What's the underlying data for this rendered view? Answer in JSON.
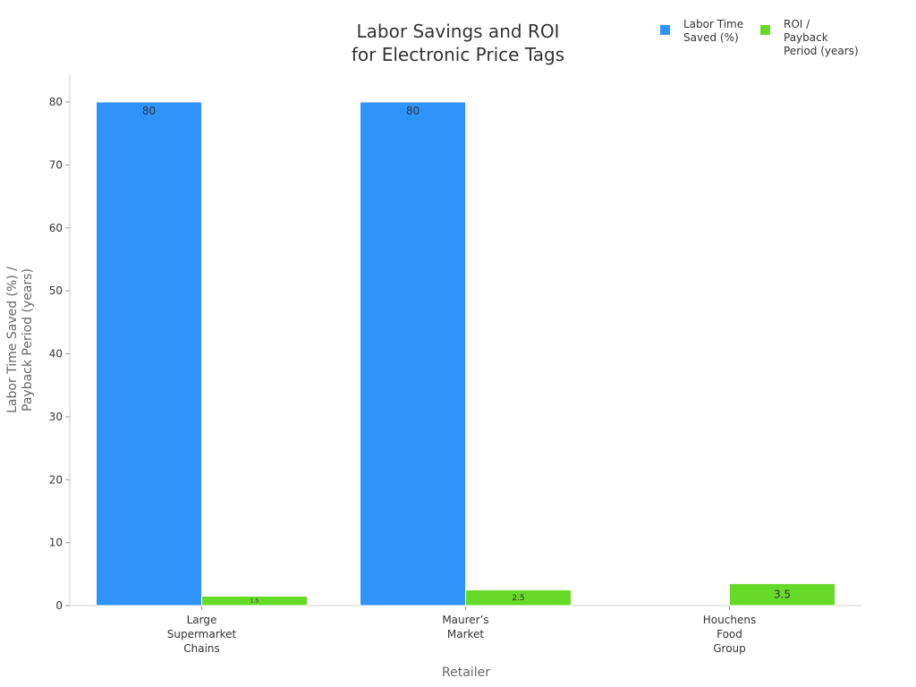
{
  "chart_data": {
    "type": "bar",
    "title": [
      "Labor Savings and ROI",
      "for Electronic Price Tags"
    ],
    "xlabel": "Retailer",
    "ylabel": [
      "Labor Time Saved (%) /",
      "Payback Period (years)"
    ],
    "ylim": [
      0,
      84
    ],
    "yticks": [
      0,
      10,
      20,
      30,
      40,
      50,
      60,
      70,
      80
    ],
    "categories": [
      [
        "Large",
        "Supermarket",
        "Chains"
      ],
      [
        "Maurer’s",
        "Market"
      ],
      [
        "Houchens",
        "Food",
        "Group"
      ]
    ],
    "series": [
      {
        "name": [
          "Labor Time",
          "Saved (%)"
        ],
        "color": "#2e93fa",
        "values": [
          80,
          80,
          null
        ],
        "labels": [
          "80",
          "80",
          ""
        ]
      },
      {
        "name": [
          "ROI /",
          "Payback",
          "Period (years)"
        ],
        "color": "#66da26",
        "values": [
          1.5,
          2.5,
          3.5
        ],
        "labels": [
          "1.5",
          "2.5",
          "3.5"
        ]
      }
    ],
    "grid": false,
    "legend": "top-right"
  }
}
